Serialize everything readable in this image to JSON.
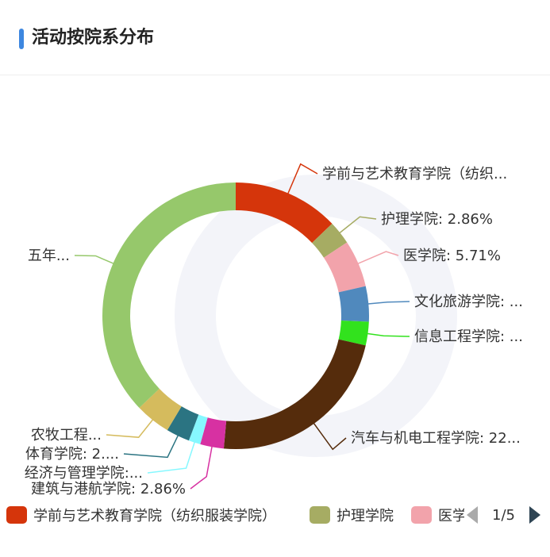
{
  "header": {
    "title": "活动按院系分布",
    "accent_color": "#3d87e0"
  },
  "chart_data": {
    "type": "pie",
    "variant": "donut",
    "slices": [
      {
        "name": "学前与艺术教育学院（纺织服装学院）",
        "value": 12.86,
        "color": "#d5350b",
        "label": "学前与艺术教育学院（纺织..."
      },
      {
        "name": "护理学院",
        "value": 2.86,
        "color": "#a6ac63",
        "label": "护理学院: 2.86%"
      },
      {
        "name": "医学院",
        "value": 5.71,
        "color": "#f2a3ab",
        "label": "医学院: 5.71%"
      },
      {
        "name": "文化旅游学院",
        "value": 4.29,
        "color": "#5089bd",
        "label": "文化旅游学院: ..."
      },
      {
        "name": "信息工程学院",
        "value": 2.86,
        "color": "#32e21d",
        "label": "信息工程学院: ..."
      },
      {
        "name": "汽车与机电工程学院",
        "value": 22.86,
        "color": "#552c0c",
        "label": "汽车与机电工程学院: 22..."
      },
      {
        "name": "建筑与港航学院",
        "value": 2.86,
        "color": "#d731a2",
        "label": "建筑与港航学院: 2.86%"
      },
      {
        "name": "经济与管理学院",
        "value": 1.43,
        "color": "#86f8ff",
        "label": "经济与管理学院:..."
      },
      {
        "name": "体育学院",
        "value": 2.86,
        "color": "#2b7482",
        "label": "体育学院: 2...."
      },
      {
        "name": "农牧工程学院",
        "value": 4.29,
        "color": "#d5bb5d",
        "label": "农牧工程..."
      },
      {
        "name": "五年制",
        "value": 37.14,
        "color": "#96c86b",
        "label": "五年..."
      }
    ],
    "legend": {
      "placement": "bottom",
      "items": [
        {
          "label": "学前与艺术教育学院（纺织服装学院）",
          "color": "#d5350b"
        },
        {
          "label": "护理学院",
          "color": "#a6ac63"
        },
        {
          "label": "医学院",
          "color": "#f2a3ab"
        }
      ],
      "page": "1/5"
    }
  }
}
